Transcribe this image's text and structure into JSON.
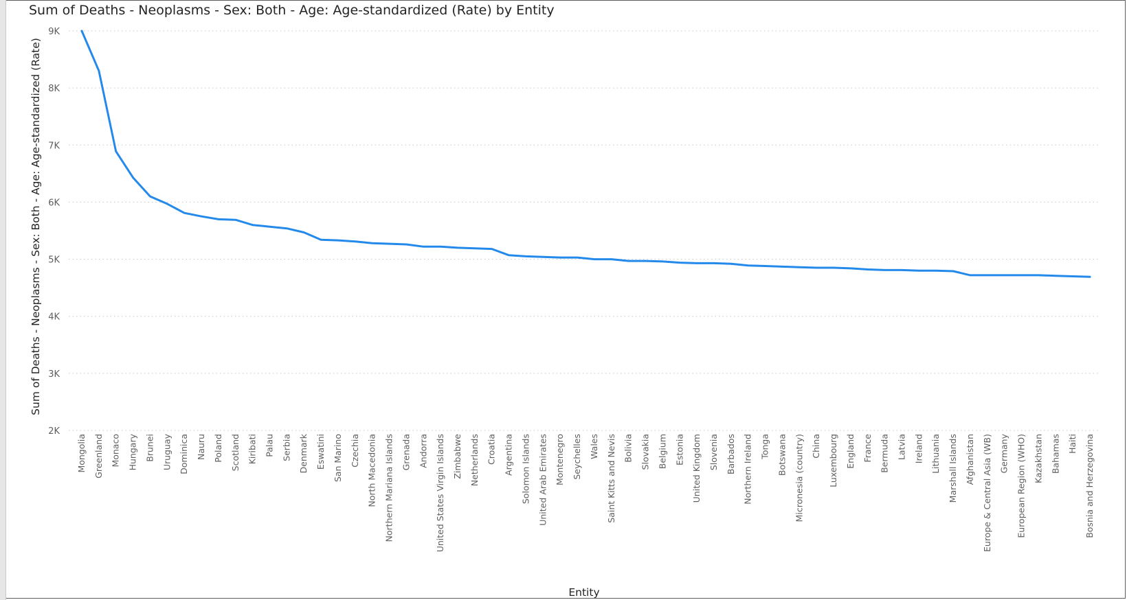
{
  "title": "Sum of Deaths - Neoplasms - Sex: Both - Age: Age-standardized (Rate) by Entity",
  "colors": {
    "line": "#2389ea",
    "grid": "#c8c6c4",
    "text": "#605e5c",
    "title": "#252423"
  },
  "chart_data": {
    "type": "line",
    "title": "Sum of Deaths - Neoplasms - Sex: Both - Age: Age-standardized (Rate) by Entity",
    "xlabel": "Entity",
    "ylabel": "Sum of Deaths - Neoplasms - Sex: Both - Age: Age-standardized (Rate)",
    "ylim": [
      2000,
      9000
    ],
    "yticks": [
      2000,
      3000,
      4000,
      5000,
      6000,
      7000,
      8000,
      9000
    ],
    "ytick_labels": [
      "2K",
      "3K",
      "4K",
      "5K",
      "6K",
      "7K",
      "8K",
      "9K"
    ],
    "grid": true,
    "categories": [
      "Mongolia",
      "Greenland",
      "Monaco",
      "Hungary",
      "Brunei",
      "Uruguay",
      "Dominica",
      "Nauru",
      "Poland",
      "Scotland",
      "Kiribati",
      "Palau",
      "Serbia",
      "Denmark",
      "Eswatini",
      "San Marino",
      "Czechia",
      "North Macedonia",
      "Northern Mariana Islands",
      "Grenada",
      "Andorra",
      "United States Virgin Islands",
      "Zimbabwe",
      "Netherlands",
      "Croatia",
      "Argentina",
      "Solomon Islands",
      "United Arab Emirates",
      "Montenegro",
      "Seychelles",
      "Wales",
      "Saint Kitts and Nevis",
      "Bolivia",
      "Slovakia",
      "Belgium",
      "Estonia",
      "United Kingdom",
      "Slovenia",
      "Barbados",
      "Northern Ireland",
      "Tonga",
      "Botswana",
      "Micronesia (country)",
      "China",
      "Luxembourg",
      "England",
      "France",
      "Bermuda",
      "Latvia",
      "Ireland",
      "Lithuania",
      "Marshall Islands",
      "Afghanistan",
      "Europe & Central Asia (WB)",
      "Germany",
      "European Region (WHO)",
      "Kazakhstan",
      "Bahamas",
      "Haiti",
      "Bosnia and Herzegovina"
    ],
    "series": [
      {
        "values": [
          9000,
          8300,
          6890,
          6430,
          6100,
          5970,
          5810,
          5750,
          5700,
          5690,
          5600,
          5570,
          5540,
          5470,
          5340,
          5330,
          5310,
          5280,
          5270,
          5260,
          5220,
          5220,
          5200,
          5190,
          5180,
          5070,
          5050,
          5040,
          5030,
          5030,
          5000,
          5000,
          4970,
          4970,
          4960,
          4940,
          4930,
          4930,
          4920,
          4890,
          4880,
          4870,
          4860,
          4850,
          4850,
          4840,
          4820,
          4810,
          4810,
          4800,
          4800,
          4790,
          4720,
          4720,
          4720,
          4720,
          4720,
          4710,
          4700,
          4690
        ]
      }
    ]
  }
}
